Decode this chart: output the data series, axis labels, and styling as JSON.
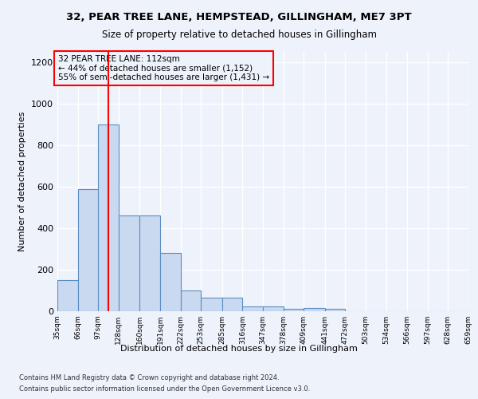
{
  "title": "32, PEAR TREE LANE, HEMPSTEAD, GILLINGHAM, ME7 3PT",
  "subtitle": "Size of property relative to detached houses in Gillingham",
  "xlabel": "Distribution of detached houses by size in Gillingham",
  "ylabel": "Number of detached properties",
  "bar_color": "#c8d9f0",
  "bar_edge_color": "#5b8ec4",
  "vline_x": 112,
  "vline_color": "red",
  "annotation_line1": "32 PEAR TREE LANE: 112sqm",
  "annotation_line2": "← 44% of detached houses are smaller (1,152)",
  "annotation_line3": "55% of semi-detached houses are larger (1,431) →",
  "annotation_box_color": "red",
  "bin_edges": [
    35,
    66,
    97,
    128,
    160,
    191,
    222,
    253,
    285,
    316,
    347,
    378,
    409,
    441,
    472,
    503,
    534,
    566,
    597,
    628,
    659
  ],
  "bar_heights": [
    150,
    590,
    900,
    460,
    460,
    280,
    100,
    65,
    65,
    25,
    25,
    10,
    15,
    10,
    0,
    0,
    0,
    0,
    0,
    0
  ],
  "ylim": [
    0,
    1250
  ],
  "yticks": [
    0,
    200,
    400,
    600,
    800,
    1000,
    1200
  ],
  "footnote1": "Contains HM Land Registry data © Crown copyright and database right 2024.",
  "footnote2": "Contains public sector information licensed under the Open Government Licence v3.0.",
  "background_color": "#eef2fb",
  "grid_color": "#ffffff"
}
